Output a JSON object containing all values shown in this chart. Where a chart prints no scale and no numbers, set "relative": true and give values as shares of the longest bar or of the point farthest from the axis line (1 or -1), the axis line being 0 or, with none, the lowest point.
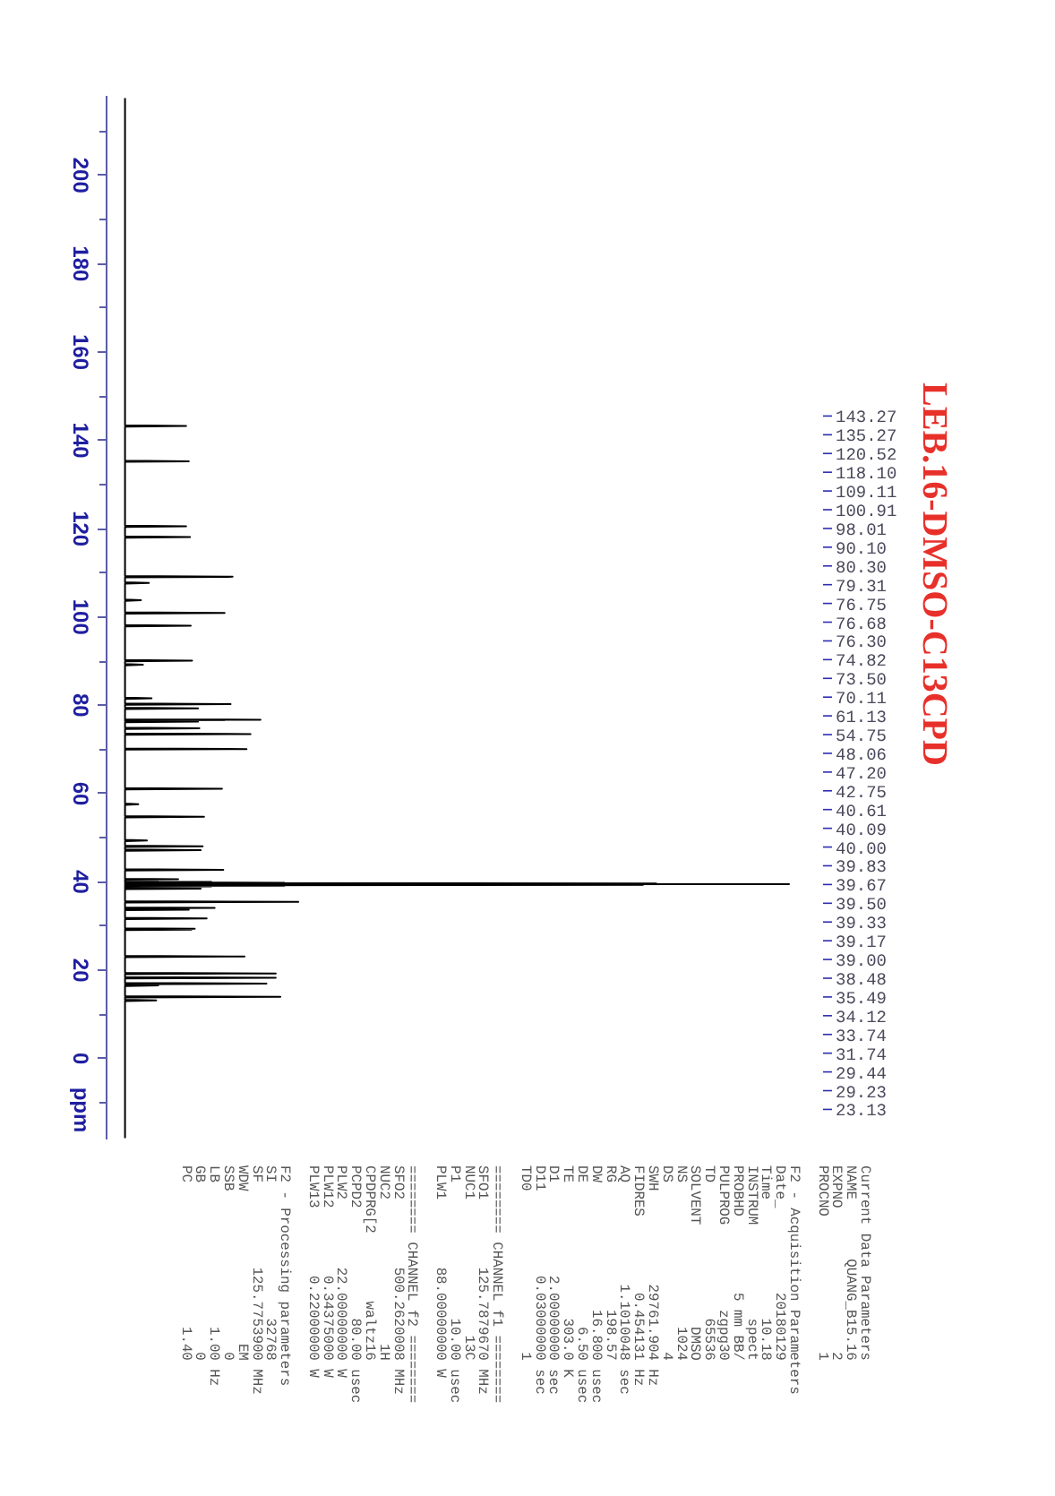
{
  "chart_data": {
    "type": "line",
    "title": "LEB.16-DMSO-C13CPD",
    "ylabel": "ppm",
    "orientation": "horizontal",
    "relative": true,
    "tick_labels": "y",
    "ylim": [
      -18.5,
      218
    ],
    "yticks": [
      {
        "value": 210,
        "label": null
      },
      200,
      {
        "value": 190,
        "label": null
      },
      180,
      {
        "value": 170,
        "label": null
      },
      160,
      {
        "value": 150,
        "label": null
      },
      140,
      {
        "value": 130,
        "label": null
      },
      120,
      {
        "value": 110,
        "label": null
      },
      100,
      {
        "value": 90,
        "label": null
      },
      80,
      {
        "value": 70,
        "label": null
      },
      60,
      {
        "value": 50,
        "label": null
      },
      40,
      {
        "value": 30,
        "label": null
      },
      20,
      {
        "value": 10,
        "label": null
      },
      0,
      {
        "value": -10,
        "label": null
      }
    ],
    "x": [
      217.5,
      143.42,
      143.27,
      143.12,
      135.42,
      135.27,
      135.12,
      120.67,
      120.52,
      120.37,
      118.25,
      118.1,
      117.95,
      109.26,
      109.11,
      108.96,
      107.85,
      107.7,
      107.55,
      103.95,
      103.8,
      103.65,
      101.06,
      100.91,
      100.76,
      98.16,
      98.01,
      97.86,
      90.25,
      90.1,
      89.95,
      89.35,
      89.2,
      89.05,
      81.75,
      81.6,
      81.45,
      80.45,
      80.3,
      80.15,
      79.46,
      79.31,
      79.16,
      76.8,
      76.75,
      76.71,
      76.68,
      76.64,
      76.45,
      76.3,
      76.15,
      74.97,
      74.82,
      74.67,
      73.65,
      73.5,
      73.35,
      70.26,
      70.11,
      69.96,
      61.28,
      61.13,
      60.98,
      57.75,
      57.6,
      57.45,
      54.9,
      54.75,
      54.6,
      49.55,
      49.4,
      49.25,
      48.21,
      48.06,
      47.91,
      47.35,
      47.2,
      47.05,
      42.9,
      42.75,
      42.6,
      40.71,
      40.61,
      40.51,
      40.12,
      40.09,
      40.05,
      40.0,
      39.92,
      39.83,
      39.75,
      39.67,
      39.58,
      39.5,
      39.42,
      39.33,
      39.25,
      39.17,
      39.08,
      39.0,
      38.92,
      38.58,
      38.48,
      38.38,
      35.64,
      35.49,
      35.34,
      34.22,
      34.12,
      34.02,
      33.84,
      33.74,
      33.64,
      31.89,
      31.74,
      31.59,
      29.54,
      29.44,
      29.34,
      29.23,
      29.13,
      23.28,
      23.13,
      22.98,
      19.45,
      19.3,
      19.15,
      18.45,
      18.3,
      18.15,
      17.15,
      17.0,
      16.85,
      16.75,
      16.6,
      16.45,
      14.15,
      14.0,
      13.85,
      13.35,
      13.2,
      13.05,
      -18
    ],
    "series": [
      {
        "color": "#000000",
        "values": [
          0,
          0,
          0.092,
          0,
          0,
          0.096,
          0,
          0,
          0.092,
          0,
          0,
          0.098,
          0,
          0,
          0.162,
          0,
          0,
          0.036,
          0,
          0,
          0.024,
          0,
          0,
          0.15,
          0,
          0,
          0.099,
          0,
          0,
          0.101,
          0,
          0,
          0.027,
          0,
          0,
          0.04,
          0,
          0,
          0.159,
          0,
          0,
          0.11,
          0,
          0,
          0.204,
          0,
          0.15,
          0,
          0,
          0.11,
          0,
          0,
          0.112,
          0,
          0,
          0.189,
          0,
          0,
          0.183,
          0,
          0,
          0.146,
          0,
          0,
          0.02,
          0,
          0,
          0.119,
          0,
          0,
          0.033,
          0,
          0,
          0.117,
          0,
          0,
          0.114,
          0,
          0,
          0.148,
          0,
          0,
          0.08,
          0,
          0,
          0.05,
          0,
          0.13,
          0,
          0.24,
          0,
          0.8,
          0,
          1,
          0,
          0.78,
          0,
          0.24,
          0,
          0.13,
          0,
          0,
          0.114,
          0,
          0,
          0.261,
          0,
          0,
          0.135,
          0,
          0,
          0.096,
          0,
          0,
          0.123,
          0,
          0,
          0.105,
          0,
          0.1,
          0,
          0,
          0.18,
          0,
          0,
          0.227,
          0,
          0,
          0.227,
          0,
          0,
          0.213,
          0,
          0,
          0.05,
          0,
          0,
          0.234,
          0,
          0,
          0.047,
          0,
          0
        ]
      }
    ],
    "annotations": [
      "143.27",
      "135.27",
      "120.52",
      "118.10",
      "109.11",
      "100.91",
      "98.01",
      "90.10",
      "80.30",
      "79.31",
      "76.75",
      "76.68",
      "76.30",
      "74.82",
      "73.50",
      "70.11",
      "61.13",
      "54.75",
      "48.06",
      "47.20",
      "42.75",
      "40.61",
      "40.09",
      "40.00",
      "39.83",
      "39.67",
      "39.50",
      "39.33",
      "39.17",
      "39.00",
      "38.48",
      "35.49",
      "34.12",
      "33.74",
      "31.74",
      "29.44",
      "29.23",
      "23.13",
      "Current Data Parameters\nNAME\tQUANG_B15.16\nEXPNO\t2\nPROCNO\t1",
      "F2 - Acquisition Parameters\nDate_\t20180129\nTime\t10.18\nINSTRUM\tspect\nPROBHD\t5 mm BB/\nPULPROG\tzgpg30\nTD\t65536\nSOLVENT\tDMSO\nNS\t1024\nDS\t4\nSWH\t29761.904\tHz\nFIDRES\t0.454131\tHz\nAQ\t1.1010048\tsec\nRG\t198.57\nDW\t16.800\tusec\nDE\t6.50\tusec\nTE\t303.0\tK\nD1\t2.00000000\tsec\nD11\t0.03000000\tsec\nTD0\t1",
      "======== CHANNEL f1 ========\nSFO1\t125.7879670\tMHz\nNUC1\t13C\nP1\t10.00\tusec\nPLW1\t88.00000000\tW",
      "======== CHANNEL f2 ========\nSFO2\t500.2620008\tMHz\nNUC2\t1H\nCPDPRG[2\twaltz16\nPCPD2\t80.00\tusec\nPLW2\t22.00000000\tW\nPLW12\t0.34375000\tW\nPLW13\t0.22000000\tW",
      "F2 - Processing parameters\nSI\t32768\nSF\t125.7753900\tMHz\nWDW\tEM\nSSB\t0\nLB\t1.00\tHz\nGB\t0\nPC\t1.40"
    ]
  }
}
